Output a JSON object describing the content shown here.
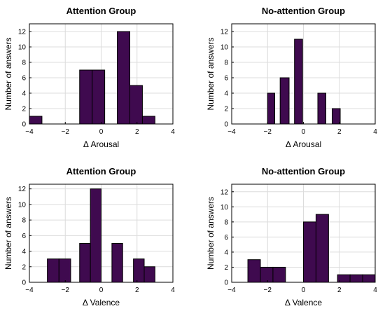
{
  "chart_data": [
    {
      "type": "bar",
      "title": "Attention Group",
      "xlabel": "Δ Arousal",
      "ylabel": "Number of answers",
      "xlim": [
        -4,
        4
      ],
      "ylim": [
        0,
        13
      ],
      "xticks": [
        -4,
        -2,
        0,
        2,
        4
      ],
      "yticks": [
        0,
        2,
        4,
        6,
        8,
        10,
        12
      ],
      "grid": true,
      "bars": [
        {
          "x0": -4.0,
          "x1": -3.3,
          "value": 1
        },
        {
          "x0": -1.2,
          "x1": -0.5,
          "value": 7
        },
        {
          "x0": -0.5,
          "x1": 0.2,
          "value": 7
        },
        {
          "x0": 0.9,
          "x1": 1.6,
          "value": 12
        },
        {
          "x0": 1.6,
          "x1": 2.3,
          "value": 5
        },
        {
          "x0": 2.3,
          "x1": 3.0,
          "value": 1
        }
      ]
    },
    {
      "type": "bar",
      "title": "No-attention Group",
      "xlabel": "Δ Arousal",
      "ylabel": "Number of answers",
      "xlim": [
        -4,
        4
      ],
      "ylim": [
        0,
        13
      ],
      "xticks": [
        -4,
        -2,
        0,
        2,
        4
      ],
      "yticks": [
        0,
        2,
        4,
        6,
        8,
        10,
        12
      ],
      "grid": true,
      "bars": [
        {
          "x0": -2.0,
          "x1": -1.6,
          "value": 4
        },
        {
          "x0": -1.3,
          "x1": -0.8,
          "value": 6
        },
        {
          "x0": -0.5,
          "x1": -0.05,
          "value": 11
        },
        {
          "x0": 0.8,
          "x1": 1.25,
          "value": 4
        },
        {
          "x0": 1.6,
          "x1": 2.05,
          "value": 2
        }
      ]
    },
    {
      "type": "bar",
      "title": "Attention Group",
      "xlabel": "Δ Valence",
      "ylabel": "Number of answers",
      "xlim": [
        -4,
        4
      ],
      "ylim": [
        0,
        12.6
      ],
      "xticks": [
        -4,
        -2,
        0,
        2,
        4
      ],
      "yticks": [
        0,
        2,
        4,
        6,
        8,
        10,
        12
      ],
      "grid": true,
      "bars": [
        {
          "x0": -3.0,
          "x1": -2.35,
          "value": 3
        },
        {
          "x0": -2.35,
          "x1": -1.7,
          "value": 3
        },
        {
          "x0": -1.2,
          "x1": -0.6,
          "value": 5
        },
        {
          "x0": -0.6,
          "x1": 0.0,
          "value": 12
        },
        {
          "x0": 0.6,
          "x1": 1.2,
          "value": 5
        },
        {
          "x0": 1.8,
          "x1": 2.4,
          "value": 3
        },
        {
          "x0": 2.4,
          "x1": 3.0,
          "value": 2
        }
      ]
    },
    {
      "type": "bar",
      "title": "No-attention Group",
      "xlabel": "Δ Valence",
      "ylabel": "Number of answers",
      "xlim": [
        -4,
        4
      ],
      "ylim": [
        0,
        13
      ],
      "xticks": [
        -4,
        -2,
        0,
        2,
        4
      ],
      "yticks": [
        0,
        2,
        4,
        6,
        8,
        10,
        12
      ],
      "grid": true,
      "bars": [
        {
          "x0": -3.1,
          "x1": -2.4,
          "value": 3
        },
        {
          "x0": -2.4,
          "x1": -1.7,
          "value": 2
        },
        {
          "x0": -1.7,
          "x1": -1.0,
          "value": 2
        },
        {
          "x0": 0.0,
          "x1": 0.7,
          "value": 8
        },
        {
          "x0": 0.7,
          "x1": 1.4,
          "value": 9
        },
        {
          "x0": 1.9,
          "x1": 2.6,
          "value": 1
        },
        {
          "x0": 2.6,
          "x1": 3.3,
          "value": 1
        },
        {
          "x0": 3.3,
          "x1": 4.0,
          "value": 1
        }
      ]
    }
  ],
  "style": {
    "bar_color": "#3f0a4f",
    "grid_color": "#dcdcdc"
  }
}
